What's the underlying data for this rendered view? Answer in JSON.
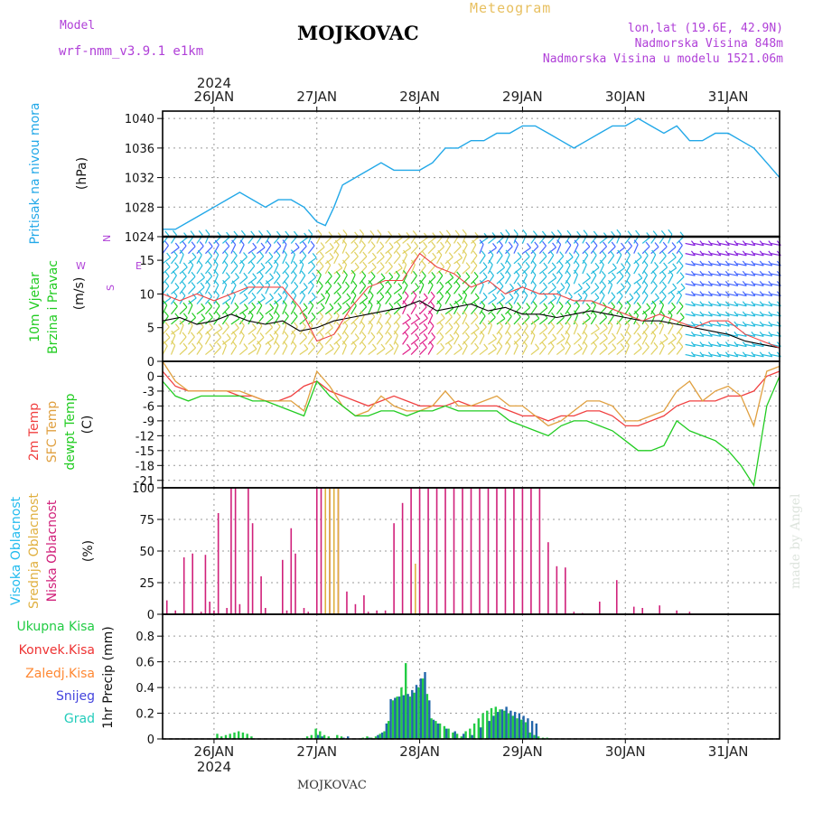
{
  "header": {
    "model_label": "Model",
    "model_name": "wrf-nmm_v3.9.1  e1km",
    "title": "MOJKOVAC",
    "meteogram": "Meteogram",
    "lonlat": "lon,lat (19.6E, 42.9N)",
    "elevation": "Nadmorska Visina 848m",
    "model_elevation": "Nadmorska Visina u modelu 1521.06m"
  },
  "footer": {
    "station": "MOJKOVAC",
    "watermark": "made by Angel"
  },
  "time_axis": {
    "year": "2024",
    "day_labels": [
      "26JAN",
      "27JAN",
      "28JAN",
      "29JAN",
      "30JAN",
      "31JAN"
    ],
    "day_positions_h": [
      0,
      24,
      48,
      72,
      96,
      120
    ],
    "range_h": [
      -12,
      132
    ]
  },
  "colors": {
    "pressure": "#22a8e8",
    "temp2m": "#f04040",
    "sfc_temp": "#e0a040",
    "dewpt": "#22cc22",
    "high_cloud": "#22bbee",
    "mid_cloud": "#e0b040",
    "low_cloud": "#d0207a",
    "total_precip": "#22cc44",
    "convective": "#ee3333",
    "frozen": "#ff8833",
    "snow": "#4444dd",
    "graupel": "#22ccbb",
    "wind_barb_colors": [
      "#22bbdd",
      "#e0d060",
      "#22cc22",
      "#e0208a",
      "#4466ff",
      "#8822dd"
    ]
  },
  "chart_data": [
    {
      "id": "pressure",
      "type": "line",
      "ylabel_lines": [
        "Pritisak na nivou mora",
        "(hPa)"
      ],
      "ylim": [
        1024,
        1041
      ],
      "yticks": [
        1024,
        1028,
        1032,
        1036,
        1040
      ],
      "x": [
        -12,
        -9,
        -6,
        -3,
        0,
        3,
        6,
        9,
        12,
        15,
        18,
        21,
        24,
        26,
        28,
        30,
        33,
        36,
        39,
        42,
        45,
        48,
        51,
        54,
        57,
        60,
        63,
        66,
        69,
        72,
        75,
        78,
        81,
        84,
        87,
        90,
        93,
        96,
        99,
        102,
        105,
        108,
        111,
        114,
        117,
        120,
        123,
        126,
        129,
        132
      ],
      "y": [
        1025,
        1025,
        1026,
        1027,
        1028,
        1029,
        1030,
        1029,
        1028,
        1029,
        1029,
        1028,
        1026,
        1025.5,
        1028,
        1031,
        1032,
        1033,
        1034,
        1033,
        1033,
        1033,
        1034,
        1036,
        1036,
        1037,
        1037,
        1038,
        1038,
        1039,
        1039,
        1038,
        1037,
        1036,
        1037,
        1038,
        1039,
        1039,
        1040,
        1039,
        1038,
        1039,
        1037,
        1037,
        1038,
        1038,
        1037,
        1036,
        1034,
        1032
      ]
    },
    {
      "id": "wind",
      "type": "line",
      "ylabel_lines": [
        "10m Vjetar",
        "Brzina i Pravac",
        "(m/s)"
      ],
      "ylim": [
        0,
        18.5
      ],
      "yticks": [
        0,
        5,
        10,
        15
      ],
      "legend_compass": [
        "N",
        "W",
        "E",
        "S"
      ],
      "series": [
        {
          "name": "speed",
          "color": "#000000",
          "x": [
            -12,
            -8,
            -4,
            0,
            4,
            8,
            12,
            16,
            20,
            24,
            28,
            32,
            36,
            40,
            44,
            48,
            52,
            56,
            60,
            64,
            68,
            72,
            76,
            80,
            84,
            88,
            92,
            96,
            100,
            104,
            108,
            112,
            116,
            120,
            124,
            128,
            132
          ],
          "y": [
            6,
            6.5,
            5.5,
            6,
            7,
            6,
            5.5,
            6,
            4.5,
            5,
            6,
            6.5,
            7,
            7.5,
            8,
            9,
            7.5,
            8,
            8.5,
            7.5,
            8,
            7,
            7,
            6.5,
            7,
            7.5,
            7,
            6.5,
            6,
            6,
            5.5,
            5,
            4.5,
            4,
            3,
            2.5,
            2
          ]
        },
        {
          "name": "gust",
          "color": "#ee4444",
          "x": [
            -12,
            -8,
            -4,
            0,
            4,
            8,
            12,
            16,
            20,
            24,
            28,
            32,
            36,
            40,
            44,
            48,
            52,
            56,
            60,
            64,
            68,
            72,
            76,
            80,
            84,
            88,
            92,
            96,
            100,
            104,
            108,
            112,
            116,
            120,
            124,
            128,
            132
          ],
          "y": [
            10,
            9,
            10,
            9,
            10,
            11,
            11,
            11,
            8,
            3,
            4,
            8,
            11,
            12,
            12,
            16,
            14,
            13,
            11,
            12,
            10,
            11,
            10,
            10,
            9,
            9,
            8,
            7,
            6,
            7,
            6,
            5,
            6,
            6,
            4,
            3,
            2
          ]
        }
      ]
    },
    {
      "id": "temperature",
      "type": "line",
      "ylabel_lines": [
        "2m Temp",
        "SFC Temp",
        "dewpt Temp",
        "(C)"
      ],
      "ylim": [
        -22.5,
        3
      ],
      "yticks": [
        0,
        -3,
        -6,
        -9,
        -12,
        -15,
        -18,
        -21
      ],
      "x": [
        -12,
        -9,
        -6,
        -3,
        0,
        3,
        6,
        9,
        12,
        15,
        18,
        21,
        24,
        27,
        30,
        33,
        36,
        39,
        42,
        45,
        48,
        51,
        54,
        57,
        60,
        63,
        66,
        69,
        72,
        75,
        78,
        81,
        84,
        87,
        90,
        93,
        96,
        99,
        102,
        105,
        108,
        111,
        114,
        117,
        120,
        123,
        126,
        129,
        132
      ],
      "series": [
        {
          "name": "2m Temp",
          "color": "#f04040",
          "y": [
            1,
            -2,
            -3,
            -3,
            -3,
            -3,
            -4,
            -4,
            -5,
            -5,
            -4,
            -2,
            -1,
            -3,
            -4,
            -5,
            -6,
            -5,
            -4,
            -5,
            -6,
            -6,
            -6,
            -5,
            -6,
            -6,
            -6,
            -7,
            -8,
            -8,
            -9,
            -8,
            -8,
            -7,
            -7,
            -8,
            -10,
            -10,
            -9,
            -8,
            -6,
            -5,
            -5,
            -5,
            -4,
            -4,
            -3,
            0,
            1
          ]
        },
        {
          "name": "SFC Temp",
          "color": "#e0a040",
          "y": [
            3,
            -1,
            -3,
            -3,
            -3,
            -3,
            -3,
            -4,
            -5,
            -5,
            -5,
            -7,
            1,
            -2,
            -6,
            -8,
            -7,
            -4,
            -6,
            -7,
            -7,
            -6,
            -3,
            -6,
            -6,
            -5,
            -4,
            -6,
            -6,
            -8,
            -10,
            -9,
            -7,
            -5,
            -5,
            -6,
            -9,
            -9,
            -8,
            -7,
            -3,
            -1,
            -5,
            -3,
            -2,
            -4,
            -10,
            1,
            2
          ]
        },
        {
          "name": "dewpt Temp",
          "color": "#22cc22",
          "y": [
            -1,
            -4,
            -5,
            -4,
            -4,
            -4,
            -4,
            -5,
            -5,
            -6,
            -7,
            -8,
            -1,
            -4,
            -6,
            -8,
            -8,
            -7,
            -7,
            -8,
            -7,
            -7,
            -6,
            -7,
            -7,
            -7,
            -7,
            -9,
            -10,
            -11,
            -12,
            -10,
            -9,
            -9,
            -10,
            -11,
            -13,
            -15,
            -15,
            -14,
            -9,
            -11,
            -12,
            -13,
            -15,
            -18,
            -22,
            -6,
            0
          ]
        }
      ]
    },
    {
      "id": "clouds",
      "type": "bar",
      "ylabel_lines": [
        "Visoka Oblacnost",
        "Srednja Oblacnost",
        "Niska Oblacnost",
        "(%)"
      ],
      "ylim": [
        0,
        100
      ],
      "yticks": [
        0,
        25,
        50,
        75,
        100
      ],
      "series": [
        {
          "name": "Niska Oblacnost",
          "color": "#d0207a",
          "x": [
            -11,
            -9,
            -7,
            -5,
            -3,
            -2,
            -1,
            0,
            1,
            3,
            4,
            5,
            6,
            8,
            9,
            11,
            12,
            16,
            17,
            18,
            19,
            20,
            21,
            22,
            24,
            25,
            27,
            29,
            31,
            33,
            35,
            36,
            38,
            40,
            42,
            44,
            46,
            48,
            50,
            52,
            54,
            56,
            58,
            60,
            62,
            64,
            66,
            68,
            70,
            72,
            74,
            76,
            78,
            80,
            82,
            84,
            86,
            90,
            94,
            98,
            100,
            104,
            108,
            111
          ],
          "y": [
            11,
            3,
            45,
            48,
            2,
            47,
            10,
            3,
            80,
            5,
            100,
            100,
            8,
            100,
            72,
            30,
            5,
            43,
            3,
            68,
            48,
            0,
            5,
            2,
            100,
            100,
            100,
            100,
            18,
            8,
            15,
            2,
            3,
            3,
            72,
            88,
            100,
            100,
            100,
            100,
            100,
            100,
            100,
            100,
            100,
            100,
            100,
            100,
            100,
            100,
            100,
            100,
            57,
            38,
            37,
            2,
            1,
            10,
            27,
            6,
            5,
            7,
            3,
            2
          ]
        },
        {
          "name": "Srednja Oblacnost",
          "color": "#e0b040",
          "x": [
            26,
            27,
            28,
            29,
            47
          ],
          "y": [
            100,
            100,
            100,
            100,
            40
          ]
        }
      ]
    },
    {
      "id": "precip",
      "type": "bar",
      "ylabel_lines": [
        "1hr Precip (mm)"
      ],
      "legend": [
        "Ukupna Kisa",
        "Konvek.Kisa",
        "Zaledj.Kisa",
        "Snijeg",
        "Grad"
      ],
      "ylim": [
        0,
        0.97
      ],
      "yticks": [
        0,
        0.2,
        0.4,
        0.6,
        0.8
      ],
      "series": [
        {
          "name": "Ukupna Kisa",
          "color": "#22cc44",
          "x": [
            1,
            2,
            3,
            4,
            5,
            6,
            7,
            8,
            9,
            22,
            23,
            24,
            25,
            26,
            27,
            29,
            30,
            35,
            36,
            37,
            38,
            39,
            40,
            41,
            42,
            43,
            44,
            45,
            46,
            47,
            48,
            49,
            50,
            51,
            52,
            53,
            54,
            55,
            56,
            57,
            58,
            59,
            60,
            61,
            62,
            63,
            64,
            65,
            66,
            67,
            68,
            69,
            70,
            71,
            72,
            73,
            74,
            75,
            76,
            77,
            78
          ],
          "y": [
            0.04,
            0.02,
            0.03,
            0.04,
            0.05,
            0.06,
            0.05,
            0.04,
            0.02,
            0.02,
            0.03,
            0.08,
            0.06,
            0.03,
            0.02,
            0.03,
            0.02,
            0.01,
            0.02,
            0.01,
            0.02,
            0.04,
            0.06,
            0.14,
            0.3,
            0.33,
            0.4,
            0.59,
            0.33,
            0.36,
            0.4,
            0.47,
            0.35,
            0.16,
            0.14,
            0.12,
            0.1,
            0.08,
            0.05,
            0.04,
            0.02,
            0.06,
            0.08,
            0.12,
            0.16,
            0.2,
            0.22,
            0.24,
            0.25,
            0.23,
            0.22,
            0.2,
            0.18,
            0.16,
            0.15,
            0.13,
            0.05,
            0.03,
            0.02,
            0.01,
            0.01
          ]
        },
        {
          "name": "Snijeg",
          "color": "#2266aa",
          "x": [
            24,
            25,
            30,
            31,
            36,
            38,
            39,
            40,
            41,
            42,
            43,
            44,
            45,
            46,
            47,
            48,
            49,
            50,
            51,
            52,
            54,
            56,
            58,
            60,
            62,
            64,
            65,
            66,
            67,
            68,
            69,
            70,
            71,
            72,
            73,
            74,
            75
          ],
          "y": [
            0.03,
            0.02,
            0.01,
            0.02,
            0.01,
            0.03,
            0.05,
            0.12,
            0.31,
            0.32,
            0.33,
            0.34,
            0.35,
            0.38,
            0.42,
            0.47,
            0.52,
            0.3,
            0.15,
            0.12,
            0.08,
            0.06,
            0.04,
            0.03,
            0.09,
            0.14,
            0.18,
            0.21,
            0.23,
            0.25,
            0.22,
            0.21,
            0.2,
            0.18,
            0.16,
            0.14,
            0.12
          ]
        }
      ]
    }
  ]
}
